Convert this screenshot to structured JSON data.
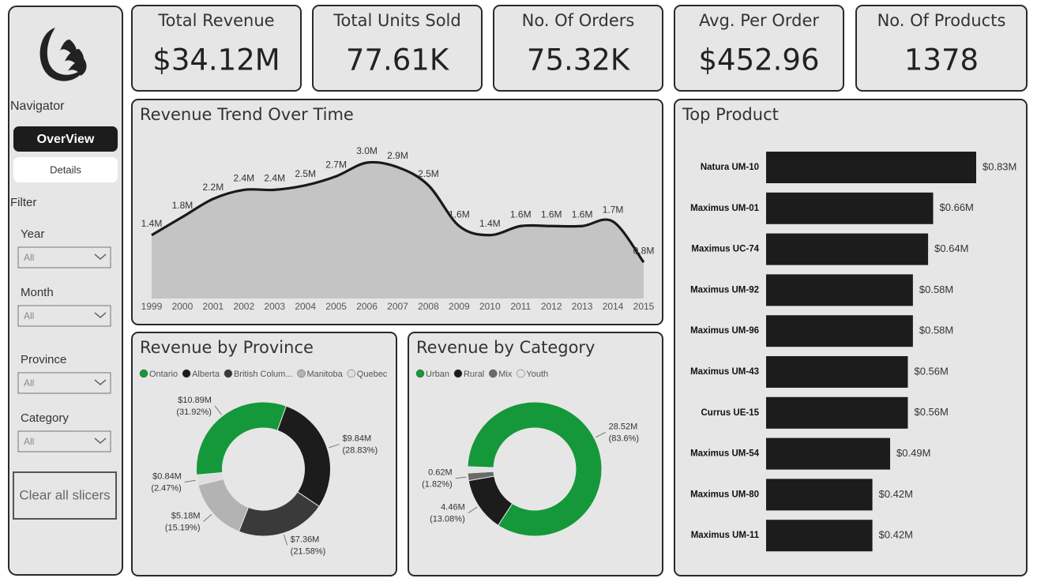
{
  "sidebar": {
    "navigator": "Navigator",
    "buttons": [
      "OverView",
      "Details"
    ],
    "filter": "Filter",
    "slicers": [
      {
        "label": "Year",
        "value": "All"
      },
      {
        "label": "Month",
        "value": "All"
      },
      {
        "label": "Province",
        "value": "All"
      },
      {
        "label": "Category",
        "value": "All"
      }
    ],
    "clear": "Clear all slicers"
  },
  "kpis": [
    {
      "label": "Total Revenue",
      "value": "$34.12M"
    },
    {
      "label": "Total Units Sold",
      "value": "77.61K"
    },
    {
      "label": "No. Of Orders",
      "value": "75.32K"
    },
    {
      "label": "Avg. Per Order",
      "value": "$452.96"
    },
    {
      "label": "No. Of Products",
      "value": "1378"
    }
  ],
  "chart_data": [
    {
      "type": "area",
      "title": "Revenue Trend Over Time",
      "x": [
        1999,
        2000,
        2001,
        2002,
        2003,
        2004,
        2005,
        2006,
        2007,
        2008,
        2009,
        2010,
        2011,
        2012,
        2013,
        2014,
        2015
      ],
      "values": [
        1.4,
        1.8,
        2.2,
        2.4,
        2.4,
        2.5,
        2.7,
        3.0,
        2.9,
        2.5,
        1.6,
        1.4,
        1.6,
        1.6,
        1.6,
        1.7,
        0.8
      ],
      "value_labels": [
        "1.4M",
        "1.8M",
        "2.2M",
        "2.4M",
        "2.4M",
        "2.5M",
        "2.7M",
        "3.0M",
        "2.9M",
        "2.5M",
        "1.6M",
        "1.4M",
        "1.6M",
        "1.6M",
        "1.6M",
        "1.7M",
        "0.8M"
      ],
      "color": "#1a1a1a",
      "area_color": "#c4c4c4"
    },
    {
      "type": "donut",
      "title": "Revenue by Province",
      "categories": [
        "Ontario",
        "Alberta",
        "British Colum...",
        "Manitoba",
        "Quebec"
      ],
      "values": [
        10.89,
        9.84,
        7.36,
        5.18,
        0.84
      ],
      "value_labels": [
        "$10.89M",
        "$9.84M",
        "$7.36M",
        "$5.18M",
        "$0.84M"
      ],
      "percent_labels": [
        "(31.92%)",
        "(28.83%)",
        "(21.58%)",
        "(15.19%)",
        "(2.47%)"
      ],
      "colors": [
        "#15983a",
        "#1c1c1c",
        "#3a3a3a",
        "#b3b3b3",
        "#dedede"
      ]
    },
    {
      "type": "donut",
      "title": "Revenue by Category",
      "categories": [
        "Urban",
        "Rural",
        "Mix",
        "Youth"
      ],
      "values": [
        28.52,
        4.46,
        0.62,
        0.51
      ],
      "value_labels": [
        "28.52M",
        "4.46M",
        "0.62M",
        null
      ],
      "percent_labels": [
        "(83.6%)",
        "(13.08%)",
        "(1.82%)",
        null
      ],
      "colors": [
        "#15983a",
        "#1c1c1c",
        "#6a6a6a",
        "#e4e4e4"
      ]
    },
    {
      "type": "hbar",
      "title": "Top Product",
      "categories": [
        "Natura UM-10",
        "Maximus UM-01",
        "Maximus UC-74",
        "Maximus UM-92",
        "Maximus UM-96",
        "Maximus UM-43",
        "Currus UE-15",
        "Maximus UM-54",
        "Maximus UM-80",
        "Maximus UM-11"
      ],
      "values": [
        0.83,
        0.66,
        0.64,
        0.58,
        0.58,
        0.56,
        0.56,
        0.49,
        0.42,
        0.42
      ],
      "value_labels": [
        "$0.83M",
        "$0.66M",
        "$0.64M",
        "$0.58M",
        "$0.58M",
        "$0.56M",
        "$0.56M",
        "$0.49M",
        "$0.42M",
        "$0.42M"
      ],
      "color": "#1c1c1c"
    }
  ]
}
